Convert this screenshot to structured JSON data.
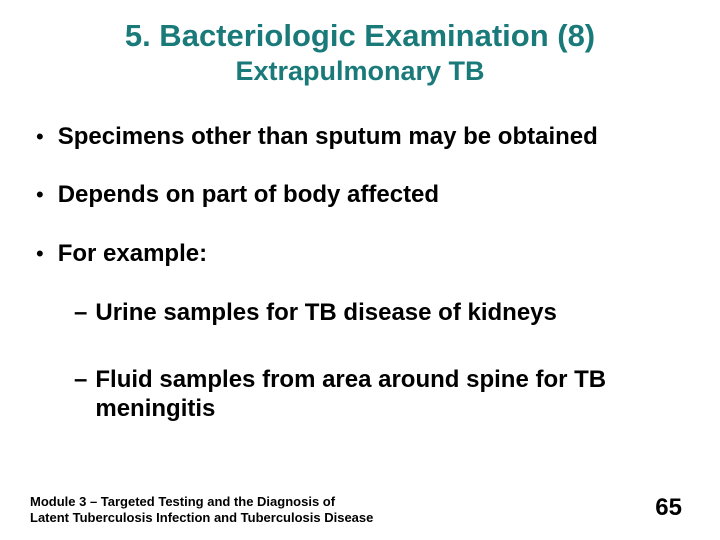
{
  "colors": {
    "background": "#ffffff",
    "title_accent": "#1a7a7a",
    "text": "#000000"
  },
  "typography": {
    "family": "Arial",
    "title_main_size": 31,
    "title_sub_size": 27,
    "body_size": 24,
    "footer_size": 13,
    "page_number_size": 24,
    "weight": "bold"
  },
  "title": {
    "main": "5.  Bacteriologic Examination (8)",
    "sub": "Extrapulmonary TB"
  },
  "bullets": [
    {
      "text": "Specimens other than sputum may be obtained"
    },
    {
      "text": "Depends on part of body affected"
    },
    {
      "text": "For example:"
    }
  ],
  "sub_bullets": [
    {
      "text": "Urine samples for TB disease of kidneys"
    },
    {
      "text": "Fluid samples from area around spine for TB meningitis"
    }
  ],
  "footer": {
    "line1": "Module 3 – Targeted Testing and the Diagnosis of",
    "line2": "Latent Tuberculosis Infection and Tuberculosis Disease"
  },
  "page_number": "65"
}
